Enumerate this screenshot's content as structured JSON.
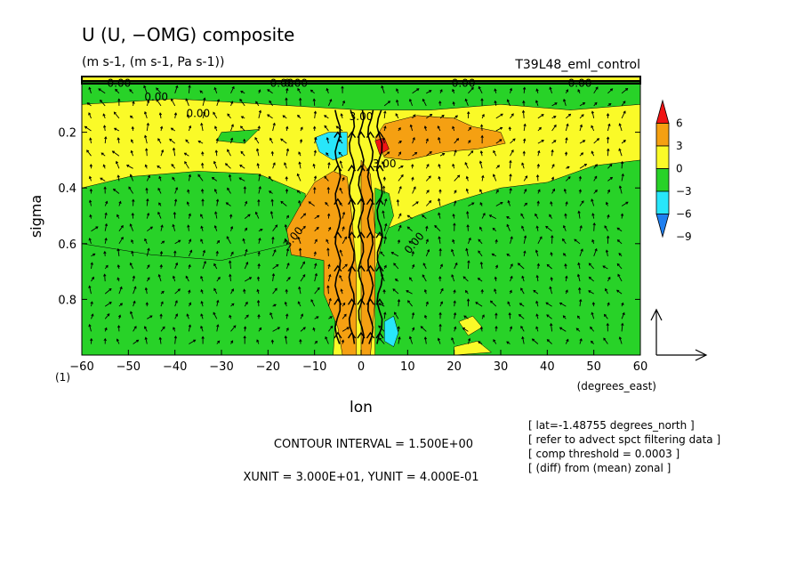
{
  "title": "U (U, −OMG) composite",
  "subtitle": "(m s-1, (m s-1, Pa s-1))",
  "experiment": "T39L48_eml_control",
  "colors": {
    "red": "#f01414",
    "orange": "#f5a012",
    "yellow": "#fafa28",
    "green": "#28d228",
    "cyan": "#28e6fa",
    "blue": "#1e7ff0"
  },
  "chart_data": {
    "type": "heatmap",
    "xlabel": "lon",
    "xunit_label": "(degrees_east)",
    "ylabel": "sigma",
    "xlim": [
      -60,
      60
    ],
    "ylim": [
      1.0,
      0.0
    ],
    "x_ticks": [
      -60,
      -50,
      -40,
      -30,
      -20,
      -10,
      0,
      10,
      20,
      30,
      40,
      50,
      60
    ],
    "y_ticks": [
      0.2,
      0.4,
      0.6,
      0.8
    ],
    "x_first_tick_label": "(1)",
    "legend": {
      "placement": "right",
      "levels": [
        "6",
        "3",
        "0",
        "-3",
        "-6",
        "-9"
      ]
    },
    "contour_labels": [
      "0.00",
      "0.00",
      "0.00",
      "0.00",
      "0.00",
      "0.00",
      "0.00",
      "3.00",
      "3.00",
      "3.00",
      "0.00"
    ],
    "regions": [
      {
        "level": "green",
        "poly": [
          [
            -60,
            0.02
          ],
          [
            60,
            0.02
          ],
          [
            60,
            0.1
          ],
          [
            45,
            0.12
          ],
          [
            30,
            0.1
          ],
          [
            15,
            0.12
          ],
          [
            0,
            0.12
          ],
          [
            -20,
            0.1
          ],
          [
            -40,
            0.08
          ],
          [
            -60,
            0.1
          ]
        ]
      },
      {
        "level": "green",
        "poly": [
          [
            -60,
            0.4
          ],
          [
            -50,
            0.36
          ],
          [
            -35,
            0.34
          ],
          [
            -22,
            0.35
          ],
          [
            -12,
            0.42
          ],
          [
            -12,
            0.52
          ],
          [
            -18,
            0.66
          ],
          [
            -30,
            0.68
          ],
          [
            -45,
            0.66
          ],
          [
            -60,
            0.64
          ]
        ]
      },
      {
        "level": "green",
        "poly": [
          [
            -60,
            0.6
          ],
          [
            -45,
            0.64
          ],
          [
            -30,
            0.66
          ],
          [
            -15,
            0.6
          ],
          [
            -8,
            0.6
          ],
          [
            -5,
            0.72
          ],
          [
            -6,
            1.0
          ],
          [
            -60,
            1.0
          ]
        ]
      },
      {
        "level": "green",
        "poly": [
          [
            -30,
            0.2
          ],
          [
            -22,
            0.19
          ],
          [
            -25,
            0.24
          ],
          [
            -31,
            0.23
          ]
        ]
      },
      {
        "level": "green",
        "poly": [
          [
            5,
            0.55
          ],
          [
            12,
            0.5
          ],
          [
            20,
            0.45
          ],
          [
            30,
            0.4
          ],
          [
            40,
            0.38
          ],
          [
            50,
            0.32
          ],
          [
            60,
            0.3
          ],
          [
            60,
            1.0
          ],
          [
            3,
            1.0
          ],
          [
            3,
            0.7
          ]
        ]
      },
      {
        "level": "green",
        "poly": [
          [
            3,
            0.4
          ],
          [
            6,
            0.42
          ],
          [
            7,
            0.5
          ],
          [
            5,
            0.58
          ],
          [
            3,
            0.56
          ]
        ]
      },
      {
        "level": "yellow",
        "poly": [
          [
            21,
            0.88
          ],
          [
            24,
            0.86
          ],
          [
            26,
            0.9
          ],
          [
            23,
            0.93
          ]
        ]
      },
      {
        "level": "yellow",
        "poly": [
          [
            20,
            0.97
          ],
          [
            25,
            0.95
          ],
          [
            28,
            0.99
          ],
          [
            20,
            1.0
          ]
        ]
      },
      {
        "level": "yellow",
        "poly": [
          [
            -6,
            0.62
          ],
          [
            -3,
            0.58
          ],
          [
            -2,
            0.66
          ],
          [
            -4,
            0.7
          ]
        ]
      },
      {
        "level": "orange",
        "poly": [
          [
            5,
            0.17
          ],
          [
            12,
            0.14
          ],
          [
            20,
            0.15
          ],
          [
            24,
            0.18
          ],
          [
            30,
            0.2
          ],
          [
            31,
            0.24
          ],
          [
            25,
            0.26
          ],
          [
            18,
            0.27
          ],
          [
            10,
            0.3
          ],
          [
            5,
            0.29
          ],
          [
            3,
            0.22
          ]
        ]
      },
      {
        "level": "orange",
        "poly": [
          [
            -13,
            0.46
          ],
          [
            -10,
            0.38
          ],
          [
            -6,
            0.34
          ],
          [
            -3,
            0.36
          ],
          [
            -2,
            0.5
          ],
          [
            -1,
            0.7
          ],
          [
            -1,
            0.95
          ],
          [
            -1,
            1.0
          ],
          [
            -4,
            1.0
          ],
          [
            -5,
            0.9
          ],
          [
            -8,
            0.78
          ],
          [
            -8,
            0.66
          ],
          [
            -15,
            0.64
          ],
          [
            -16,
            0.55
          ]
        ]
      },
      {
        "level": "orange",
        "poly": [
          [
            0,
            0.3
          ],
          [
            2,
            0.35
          ],
          [
            3,
            0.55
          ],
          [
            3,
            0.8
          ],
          [
            2,
            1.0
          ],
          [
            0,
            1.0
          ]
        ]
      },
      {
        "level": "red",
        "poly": [
          [
            3,
            0.23
          ],
          [
            5,
            0.22
          ],
          [
            6,
            0.26
          ],
          [
            4,
            0.28
          ]
        ]
      },
      {
        "level": "cyan",
        "poly": [
          [
            -10,
            0.22
          ],
          [
            -7,
            0.2
          ],
          [
            -3,
            0.2
          ],
          [
            -3,
            0.28
          ],
          [
            -6,
            0.3
          ],
          [
            -9,
            0.27
          ]
        ]
      },
      {
        "level": "cyan",
        "poly": [
          [
            5,
            0.88
          ],
          [
            7,
            0.86
          ],
          [
            8,
            0.92
          ],
          [
            7,
            0.97
          ],
          [
            5,
            0.95
          ]
        ]
      }
    ]
  },
  "footer": {
    "contour_interval": "CONTOUR INTERVAL = 1.500E+00",
    "units": "XUNIT = 3.000E+01, YUNIT = 4.000E-01"
  },
  "info": [
    "[ lat=-1.48755 degrees_north ]",
    "[ refer to advect spct filtering data ]",
    "[ comp threshold = 0.0003 ]",
    "[ (diff) from (mean) zonal ]"
  ]
}
